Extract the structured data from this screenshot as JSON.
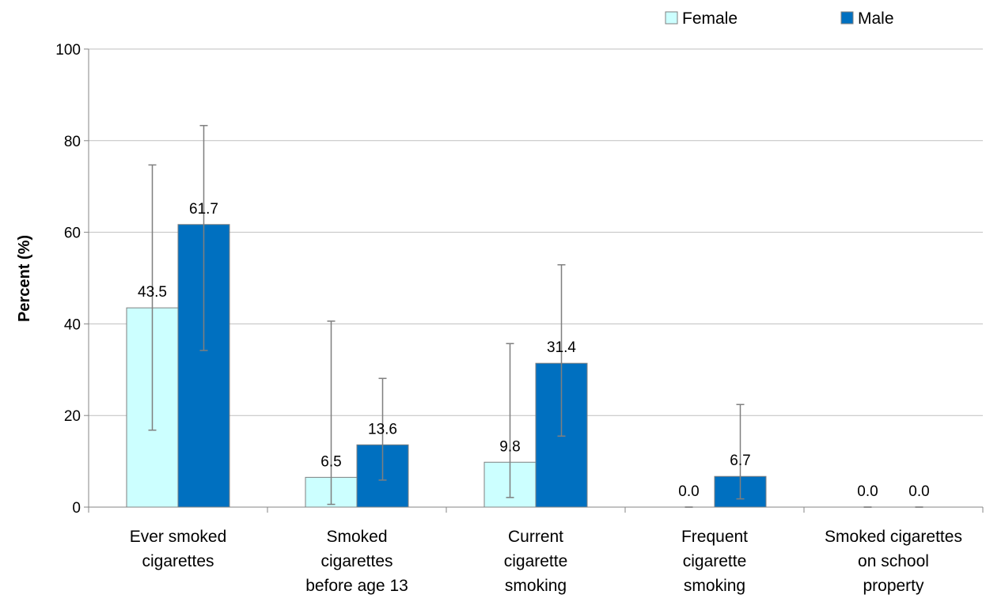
{
  "chart_data": {
    "type": "bar",
    "title": "",
    "xlabel": "",
    "ylabel": "Percent (%)",
    "ylim": [
      0,
      100
    ],
    "yticks": [
      0,
      20,
      40,
      60,
      80,
      100
    ],
    "grid": true,
    "legend_position": "top-right",
    "categories": [
      [
        "Ever smoked",
        "cigarettes"
      ],
      [
        "Smoked",
        "cigarettes",
        "before age 13"
      ],
      [
        "Current",
        "cigarette",
        "smoking"
      ],
      [
        "Frequent",
        "cigarette",
        "smoking"
      ],
      [
        "Smoked cigarettes",
        "on school",
        "property"
      ]
    ],
    "series": [
      {
        "name": "Female",
        "color": "#CCFFFF",
        "values": [
          43.5,
          6.5,
          9.8,
          0.0,
          0.0
        ],
        "labels": [
          "43.5",
          "6.5",
          "9.8",
          "0.0",
          "0.0"
        ],
        "error_low": [
          16.8,
          0.6,
          2.1,
          0.0,
          0.0
        ],
        "error_high": [
          74.7,
          40.6,
          35.7,
          0.0,
          0.0
        ]
      },
      {
        "name": "Male",
        "color": "#0070C0",
        "values": [
          61.7,
          13.6,
          31.4,
          6.7,
          0.0
        ],
        "labels": [
          "61.7",
          "13.6",
          "31.4",
          "6.7",
          "0.0"
        ],
        "error_low": [
          34.2,
          5.9,
          15.5,
          1.8,
          0.0
        ],
        "error_high": [
          83.3,
          28.1,
          52.9,
          22.4,
          0.0
        ]
      }
    ]
  }
}
